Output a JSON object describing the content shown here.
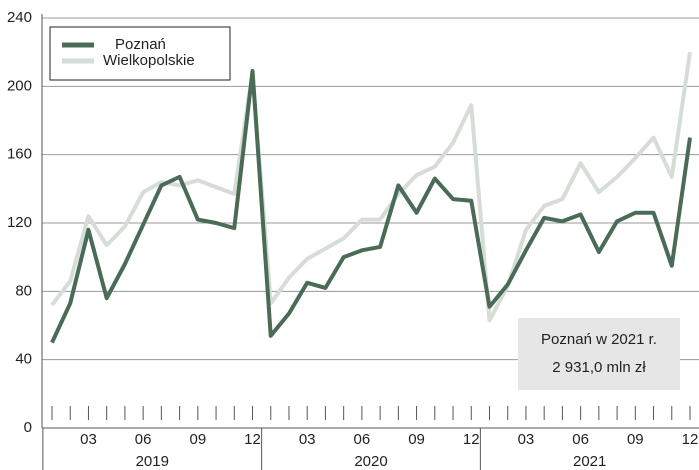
{
  "chart_data": {
    "type": "line",
    "categories": [
      null,
      null,
      "03",
      null,
      null,
      "06",
      null,
      null,
      "09",
      null,
      null,
      "12",
      null,
      null,
      "03",
      null,
      null,
      "06",
      null,
      null,
      "09",
      null,
      null,
      "12",
      null,
      null,
      "03",
      null,
      null,
      "06",
      null,
      null,
      "09",
      null,
      null,
      "12"
    ],
    "years": [
      "2019",
      "2020",
      "2021"
    ],
    "series": [
      {
        "name": "Poznań",
        "color": "#4a6b55",
        "values": [
          50,
          73,
          116,
          76,
          96,
          119,
          142,
          147,
          122,
          120,
          117,
          209,
          54,
          67,
          85,
          82,
          100,
          104,
          106,
          142,
          126,
          146,
          134,
          133,
          71,
          84,
          104,
          123,
          121,
          125,
          103,
          121,
          126,
          126,
          95,
          170
        ]
      },
      {
        "name": "Wielkopolskie",
        "color": "#d5ddd6",
        "values": [
          72,
          86,
          124,
          107,
          118,
          138,
          144,
          142,
          145,
          141,
          137,
          208,
          73,
          88,
          99,
          105,
          111,
          122,
          122,
          137,
          148,
          153,
          167,
          189,
          63,
          83,
          116,
          130,
          134,
          155,
          138,
          147,
          158,
          170,
          147,
          220
        ]
      }
    ],
    "ylim": [
      0,
      240
    ],
    "yticks": [
      0,
      40,
      80,
      120,
      160,
      200,
      240
    ],
    "grid": true,
    "legend": "upper left",
    "annotation": [
      "Poznań w 2021 r.",
      "2 931,0 mln zł"
    ]
  }
}
